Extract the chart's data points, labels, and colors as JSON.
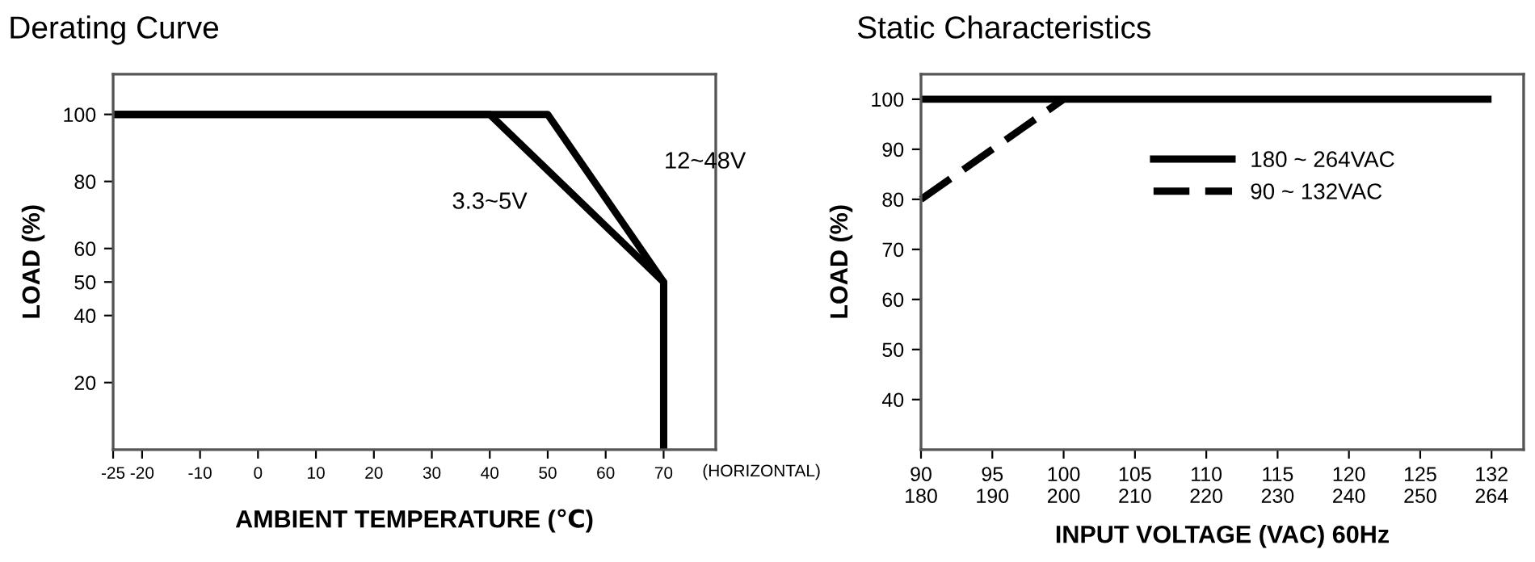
{
  "chart_data": [
    {
      "type": "line",
      "title": "Derating Curve",
      "xlabel": "AMBIENT TEMPERATURE (℃)",
      "ylabel": "LOAD (%)",
      "annotations": [
        "(HORIZONTAL)"
      ],
      "legend": false,
      "grid": false,
      "series": [
        {
          "name": "12~48V",
          "color": "#000000",
          "x": [
            -25,
            50,
            70,
            70
          ],
          "values": [
            100,
            100,
            50,
            0
          ]
        },
        {
          "name": "3.3~5V",
          "color": "#000000",
          "x": [
            -25,
            40,
            70,
            70
          ],
          "values": [
            100,
            100,
            50,
            0
          ]
        }
      ],
      "xlim": [
        -25,
        79
      ],
      "xticks": [
        -25,
        -20,
        -10,
        0,
        10,
        20,
        30,
        40,
        50,
        60,
        70
      ],
      "ylim": [
        0,
        112
      ],
      "yticks": [
        20,
        40,
        50,
        60,
        80,
        100
      ]
    },
    {
      "type": "line",
      "title": "Static Characteristics",
      "xlabel": "INPUT VOLTAGE (VAC) 60Hz",
      "ylabel": "LOAD (%)",
      "legend": "top right",
      "grid": false,
      "categories": [
        "90\n180",
        "95\n190",
        "100\n200",
        "105\n210",
        "110\n220",
        "115\n230",
        "120\n240",
        "125\n250",
        "132\n264"
      ],
      "series": [
        {
          "name": "180 ~ 264VAC",
          "color": "#000000",
          "line_style": "solid",
          "values": [
            100,
            100,
            100,
            100,
            100,
            100,
            100,
            100,
            100
          ]
        },
        {
          "name": "90 ~ 132VAC",
          "color": "#000000",
          "line_style": "dashed",
          "values": [
            80,
            90,
            100,
            null,
            null,
            null,
            null,
            null,
            null
          ]
        }
      ],
      "ylim": [
        30,
        105
      ],
      "yticks": [
        40,
        50,
        60,
        70,
        80,
        90,
        100
      ]
    }
  ]
}
